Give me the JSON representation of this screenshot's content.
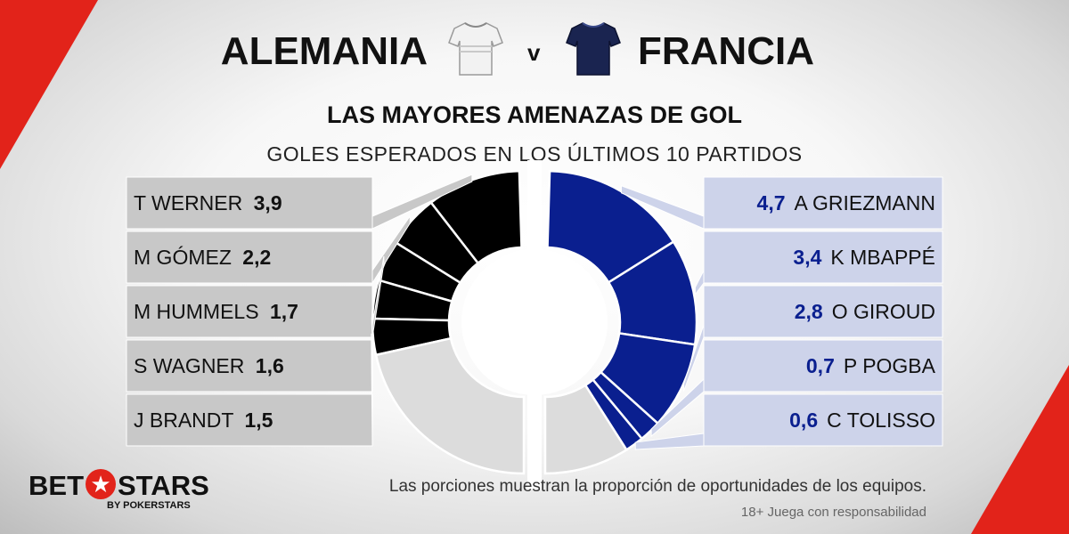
{
  "header": {
    "home_team": "ALEMANIA",
    "vs": "v",
    "away_team": "FRANCIA",
    "title": "LAS MAYORES AMENAZAS DE GOL",
    "subtitle": "GOLES ESPERADOS EN LOS ÚLTIMOS 10 PARTIDOS"
  },
  "footer": {
    "note": "Las porciones muestran la proporción de oportunidades de los equipos.",
    "responsible": "18+ Juega con responsabilidad",
    "logo_left": "BET",
    "logo_right": "STARS",
    "logo_sub": "BY POKERSTARS",
    "logo_star": "★"
  },
  "icons": {
    "home_shirt": "white-jersey-icon",
    "away_shirt": "navy-jersey-icon"
  },
  "colors": {
    "home_slice": "#000000",
    "home_rest": "#dcdcdc",
    "home_panel": "#c8c8c8",
    "away_slice": "#0a1f8f",
    "away_rest": "#dcdcdc",
    "away_panel": "#cdd3ea",
    "accent": "#e2231a"
  },
  "chart_data": [
    {
      "type": "pie",
      "team": "ALEMANIA",
      "labels": [
        "T WERNER",
        "M GÓMEZ",
        "M HUMMELS",
        "S WAGNER",
        "J BRANDT"
      ],
      "display_values": [
        "3,9",
        "2,2",
        "1,7",
        "1,6",
        "1,5"
      ],
      "values": [
        3.9,
        2.2,
        1.7,
        1.6,
        1.5
      ],
      "rest_share": 0.44
    },
    {
      "type": "pie",
      "team": "FRANCIA",
      "labels": [
        "A GRIEZMANN",
        "K MBAPPÉ",
        "O GIROUD",
        "P POGBA",
        "C TOLISSO"
      ],
      "display_values": [
        "4,7",
        "3,4",
        "2,8",
        "0,7",
        "0,6"
      ],
      "values": [
        4.7,
        3.4,
        2.8,
        0.7,
        0.6
      ],
      "rest_share": 0.19
    }
  ]
}
